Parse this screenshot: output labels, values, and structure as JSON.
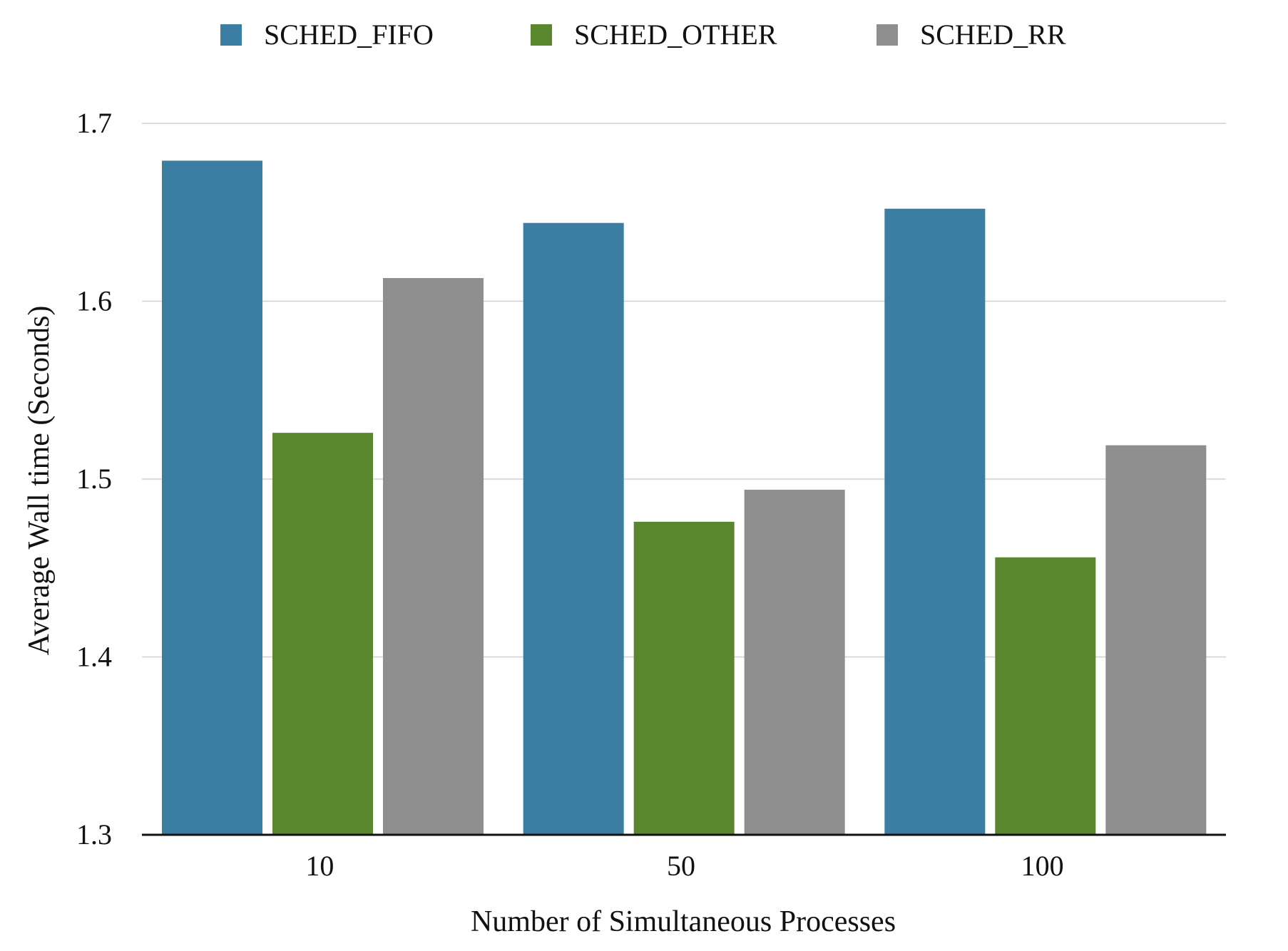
{
  "chart_data": {
    "type": "bar",
    "title": "",
    "xlabel": "Number of Simultaneous Processes",
    "ylabel": "Average Wall time (Seconds)",
    "categories": [
      "10",
      "50",
      "100"
    ],
    "series": [
      {
        "name": "SCHED_FIFO",
        "color": "#3b7ea1",
        "values": [
          1.679,
          1.644,
          1.652
        ]
      },
      {
        "name": "SCHED_OTHER",
        "color": "#5a872e",
        "values": [
          1.526,
          1.476,
          1.456
        ]
      },
      {
        "name": "SCHED_RR",
        "color": "#8e8e8e",
        "values": [
          1.613,
          1.494,
          1.519
        ]
      }
    ],
    "ylim": [
      1.3,
      1.7
    ],
    "yticks": [
      "1.3",
      "1.4",
      "1.5",
      "1.6",
      "1.7"
    ],
    "grid": true,
    "legend": "top"
  }
}
